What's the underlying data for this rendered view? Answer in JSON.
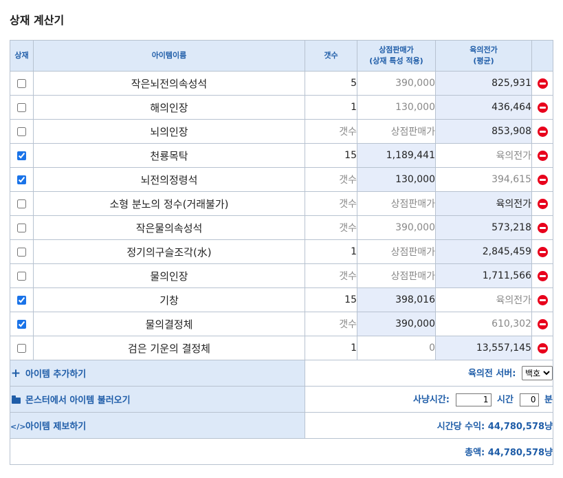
{
  "page": {
    "title": "상재 계산기"
  },
  "table": {
    "headers": {
      "check": "상재",
      "name": "아이템이름",
      "count": "갯수",
      "shop_line1": "상점판매가",
      "shop_line2": "(상재 특성 적용)",
      "price_line1": "육의전가",
      "price_line2": "(평균)"
    },
    "rows": [
      {
        "checked": false,
        "name": "작은뇌전의속성석",
        "count": "5",
        "count_placeholder": false,
        "shop": "390,000",
        "shop_placeholder": false,
        "price": "825,931",
        "price_placeholder": false
      },
      {
        "checked": false,
        "name": "해의인장",
        "count": "1",
        "count_placeholder": false,
        "shop": "130,000",
        "shop_placeholder": false,
        "price": "436,464",
        "price_placeholder": false
      },
      {
        "checked": false,
        "name": "뇌의인장",
        "count": "갯수",
        "count_placeholder": true,
        "shop": "상점판매가",
        "shop_placeholder": true,
        "price": "853,908",
        "price_placeholder": false
      },
      {
        "checked": true,
        "name": "천룡목탁",
        "count": "15",
        "count_placeholder": false,
        "shop": "1,189,441",
        "shop_placeholder": false,
        "price": "육의전가",
        "price_placeholder": true
      },
      {
        "checked": true,
        "name": "뇌전의정령석",
        "count": "갯수",
        "count_placeholder": true,
        "shop": "130,000",
        "shop_placeholder": false,
        "price": "394,615",
        "price_placeholder": false
      },
      {
        "checked": false,
        "name": "소형 분노의 정수(거래불가)",
        "count": "갯수",
        "count_placeholder": true,
        "shop": "상점판매가",
        "shop_placeholder": true,
        "price": "육의전가",
        "price_placeholder": true
      },
      {
        "checked": false,
        "name": "작은물의속성석",
        "count": "갯수",
        "count_placeholder": true,
        "shop": "390,000",
        "shop_placeholder": false,
        "price": "573,218",
        "price_placeholder": false
      },
      {
        "checked": false,
        "name": "정기의구슬조각(水)",
        "count": "1",
        "count_placeholder": false,
        "shop": "상점판매가",
        "shop_placeholder": true,
        "price": "2,845,459",
        "price_placeholder": false
      },
      {
        "checked": false,
        "name": "물의인장",
        "count": "갯수",
        "count_placeholder": true,
        "shop": "상점판매가",
        "shop_placeholder": true,
        "price": "1,711,566",
        "price_placeholder": false
      },
      {
        "checked": true,
        "name": "기창",
        "count": "15",
        "count_placeholder": false,
        "shop": "398,016",
        "shop_placeholder": false,
        "price": "육의전가",
        "price_placeholder": true
      },
      {
        "checked": true,
        "name": "물의결정체",
        "count": "갯수",
        "count_placeholder": true,
        "shop": "390,000",
        "shop_placeholder": false,
        "price": "610,302",
        "price_placeholder": false
      },
      {
        "checked": false,
        "name": "검은 기운의 결정체",
        "count": "1",
        "count_placeholder": false,
        "shop": "0",
        "shop_placeholder": false,
        "price": "13,557,145",
        "price_placeholder": false
      }
    ]
  },
  "actions": {
    "add_item": "아이템 추가하기",
    "load_from_monster": "몬스터에서 아이템 불러오기",
    "report_item": "아이템 제보하기"
  },
  "server": {
    "label": "육의전 서버:",
    "selected": "백호"
  },
  "hunt_time": {
    "label": "사냥시간:",
    "hours": "1",
    "hours_unit": "시간",
    "minutes": "0",
    "minutes_unit": "분"
  },
  "hourly_income": {
    "label": "시간당 수익:",
    "value": "44,780,578냥"
  },
  "total": {
    "label": "총액:",
    "value": "44,780,578냥"
  },
  "icons": {
    "plus": "plus-icon",
    "folder": "folder-open-icon",
    "code": "code-icon",
    "delete": "minus-circle-icon"
  },
  "colors": {
    "header_bg": "#dde9f8",
    "accent": "#1f5da8",
    "delete": "#e8001c",
    "highlight_cell": "#e6edfa"
  }
}
